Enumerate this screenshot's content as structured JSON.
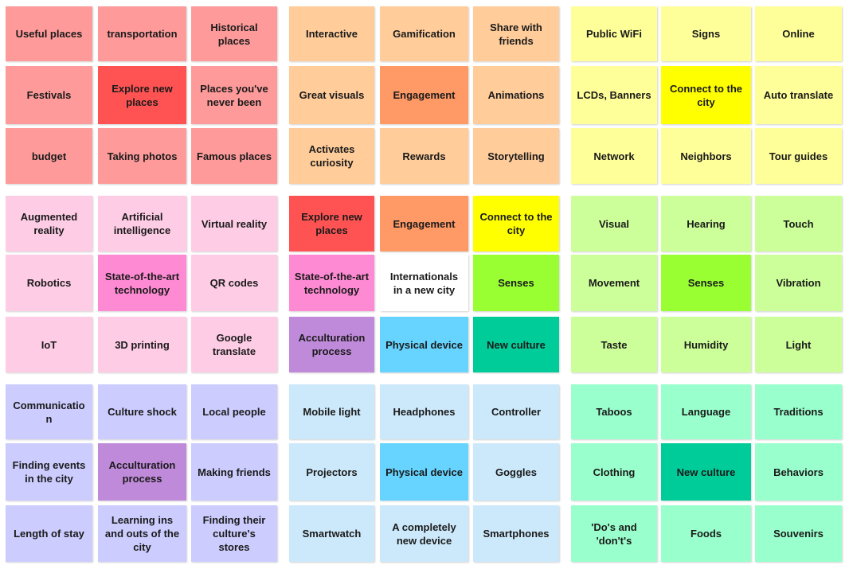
{
  "palette": {
    "red_light": "#ff9a9a",
    "red_dark": "#ff5353",
    "orange_light": "#ffcc9a",
    "orange_dark": "#ff9966",
    "yellow_light": "#ffff99",
    "yellow_dark": "#ffff00",
    "pink_light": "#ffcce6",
    "pink_dark": "#ff8ad4",
    "white": "#ffffff",
    "lime": "#99ff33",
    "teal": "#00cc99",
    "purple": "#c08ada",
    "cyan": "#66d4ff",
    "green_light": "#ccff99",
    "green_dark": "#99ff33",
    "lavender_light": "#ccccff",
    "lavender_dark": "#c08ada",
    "blue_light": "#cce9fb",
    "blue_dark": "#66d4ff",
    "mint_light": "#99ffcc",
    "mint_dark": "#00cc99"
  },
  "blocks": [
    {
      "name": "places",
      "notes": [
        {
          "text": "Useful places",
          "color": "red_light"
        },
        {
          "text": "transportation",
          "color": "red_light"
        },
        {
          "text": "Historical places",
          "color": "red_light"
        },
        {
          "text": "Festivals",
          "color": "red_light"
        },
        {
          "text": "Explore new places",
          "color": "red_dark"
        },
        {
          "text": "Places you've never been",
          "color": "red_light"
        },
        {
          "text": "budget",
          "color": "red_light"
        },
        {
          "text": "Taking photos",
          "color": "red_light"
        },
        {
          "text": "Famous places",
          "color": "red_light"
        }
      ]
    },
    {
      "name": "engagement",
      "notes": [
        {
          "text": "Interactive",
          "color": "orange_light"
        },
        {
          "text": "Gamification",
          "color": "orange_light"
        },
        {
          "text": "Share with friends",
          "color": "orange_light"
        },
        {
          "text": "Great visuals",
          "color": "orange_light"
        },
        {
          "text": "Engagement",
          "color": "orange_dark"
        },
        {
          "text": "Animations",
          "color": "orange_light"
        },
        {
          "text": "Activates curiosity",
          "color": "orange_light"
        },
        {
          "text": "Rewards",
          "color": "orange_light"
        },
        {
          "text": "Storytelling",
          "color": "orange_light"
        }
      ]
    },
    {
      "name": "city",
      "notes": [
        {
          "text": "Public WiFi",
          "color": "yellow_light"
        },
        {
          "text": "Signs",
          "color": "yellow_light"
        },
        {
          "text": "Online",
          "color": "yellow_light"
        },
        {
          "text": "LCDs, Banners",
          "color": "yellow_light"
        },
        {
          "text": "Connect to the city",
          "color": "yellow_dark"
        },
        {
          "text": "Auto translate",
          "color": "yellow_light"
        },
        {
          "text": "Network",
          "color": "yellow_light"
        },
        {
          "text": "Neighbors",
          "color": "yellow_light"
        },
        {
          "text": "Tour guides",
          "color": "yellow_light"
        }
      ]
    },
    {
      "name": "technology",
      "notes": [
        {
          "text": "Augmented reality",
          "color": "pink_light"
        },
        {
          "text": "Artificial intelligence",
          "color": "pink_light"
        },
        {
          "text": "Virtual reality",
          "color": "pink_light"
        },
        {
          "text": "Robotics",
          "color": "pink_light"
        },
        {
          "text": "State-of-the-art technology",
          "color": "pink_dark"
        },
        {
          "text": "QR codes",
          "color": "pink_light"
        },
        {
          "text": "IoT",
          "color": "pink_light"
        },
        {
          "text": "3D printing",
          "color": "pink_light"
        },
        {
          "text": "Google translate",
          "color": "pink_light"
        }
      ]
    },
    {
      "name": "center",
      "notes": [
        {
          "text": "Explore new places",
          "color": "red_dark"
        },
        {
          "text": "Engagement",
          "color": "orange_dark"
        },
        {
          "text": "Connect to the city",
          "color": "yellow_dark"
        },
        {
          "text": "State-of-the-art technology",
          "color": "pink_dark"
        },
        {
          "text": "Internationals in a new city",
          "color": "white"
        },
        {
          "text": "Senses",
          "color": "lime"
        },
        {
          "text": "Acculturation process",
          "color": "purple"
        },
        {
          "text": "Physical device",
          "color": "cyan"
        },
        {
          "text": "New culture",
          "color": "teal"
        }
      ]
    },
    {
      "name": "senses",
      "notes": [
        {
          "text": "Visual",
          "color": "green_light"
        },
        {
          "text": "Hearing",
          "color": "green_light"
        },
        {
          "text": "Touch",
          "color": "green_light"
        },
        {
          "text": "Movement",
          "color": "green_light"
        },
        {
          "text": "Senses",
          "color": "green_dark"
        },
        {
          "text": "Vibration",
          "color": "green_light"
        },
        {
          "text": "Taste",
          "color": "green_light"
        },
        {
          "text": "Humidity",
          "color": "green_light"
        },
        {
          "text": "Light",
          "color": "green_light"
        }
      ]
    },
    {
      "name": "acculturation",
      "notes": [
        {
          "text": "Communicatio n",
          "color": "lavender_light"
        },
        {
          "text": "Culture shock",
          "color": "lavender_light"
        },
        {
          "text": "Local people",
          "color": "lavender_light"
        },
        {
          "text": "Finding events in the city",
          "color": "lavender_light"
        },
        {
          "text": "Acculturation process",
          "color": "lavender_dark"
        },
        {
          "text": "Making friends",
          "color": "lavender_light"
        },
        {
          "text": "Length of stay",
          "color": "lavender_light"
        },
        {
          "text": "Learning ins and outs of the city",
          "color": "lavender_light"
        },
        {
          "text": "Finding their culture's stores",
          "color": "lavender_light"
        }
      ]
    },
    {
      "name": "device",
      "notes": [
        {
          "text": "Mobile light",
          "color": "blue_light"
        },
        {
          "text": "Headphones",
          "color": "blue_light"
        },
        {
          "text": "Controller",
          "color": "blue_light"
        },
        {
          "text": "Projectors",
          "color": "blue_light"
        },
        {
          "text": "Physical device",
          "color": "blue_dark"
        },
        {
          "text": "Goggles",
          "color": "blue_light"
        },
        {
          "text": "Smartwatch",
          "color": "blue_light"
        },
        {
          "text": "A completely new device",
          "color": "blue_light"
        },
        {
          "text": "Smartphones",
          "color": "blue_light"
        }
      ]
    },
    {
      "name": "culture",
      "notes": [
        {
          "text": "Taboos",
          "color": "mint_light"
        },
        {
          "text": "Language",
          "color": "mint_light"
        },
        {
          "text": "Traditions",
          "color": "mint_light"
        },
        {
          "text": "Clothing",
          "color": "mint_light"
        },
        {
          "text": "New culture",
          "color": "mint_dark"
        },
        {
          "text": "Behaviors",
          "color": "mint_light"
        },
        {
          "text": "'Do's and 'don't's",
          "color": "mint_light"
        },
        {
          "text": "Foods",
          "color": "mint_light"
        },
        {
          "text": "Souvenirs",
          "color": "mint_light"
        }
      ]
    }
  ]
}
